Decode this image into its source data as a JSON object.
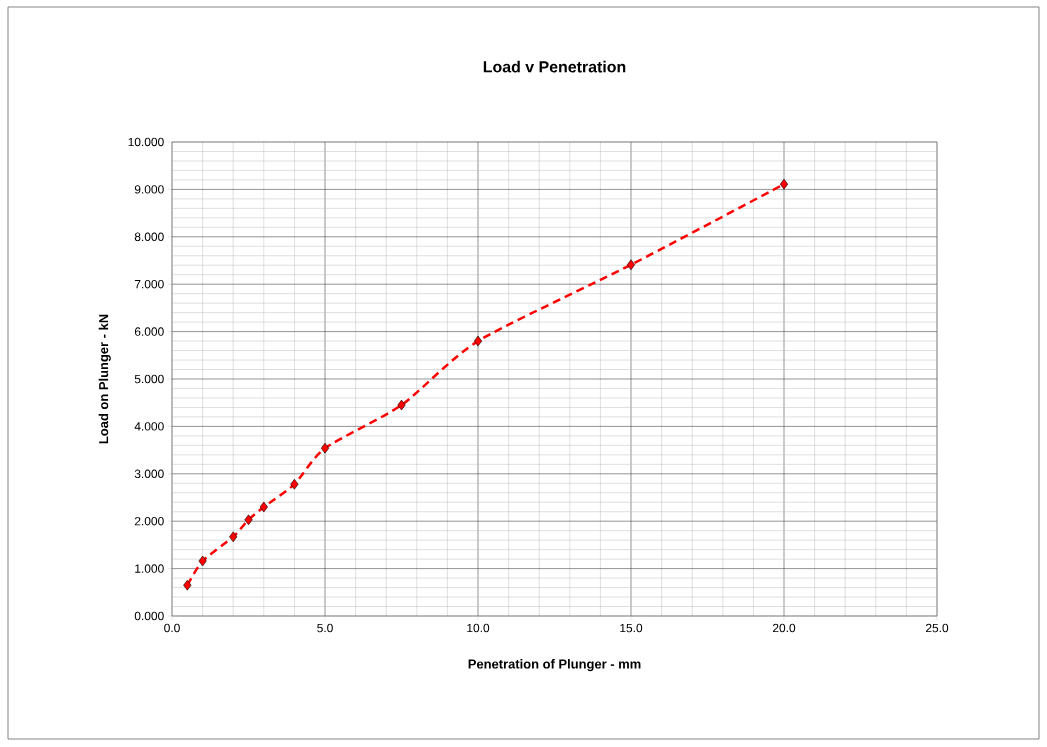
{
  "chart_data": {
    "type": "line",
    "title": "Load v Penetration",
    "xlabel": "Penetration of Plunger - mm",
    "ylabel": "Load on Plunger - kN",
    "x": [
      0.5,
      1,
      2,
      2.5,
      3,
      4,
      5,
      7.5,
      10,
      15,
      20
    ],
    "series": [
      {
        "color": "#ff0000",
        "values": [
          0.65,
          1.16,
          1.67,
          2.03,
          2.3,
          2.78,
          3.54,
          4.45,
          5.8,
          7.41,
          9.11
        ]
      }
    ],
    "xlim": [
      0,
      25
    ],
    "ylim": [
      0,
      10
    ],
    "xticks": [
      {
        "value": 0,
        "label": "0.0"
      },
      {
        "value": 5,
        "label": "5.0"
      },
      {
        "value": 10,
        "label": "10.0"
      },
      {
        "value": 15,
        "label": "15.0"
      },
      {
        "value": 20,
        "label": "20.0"
      },
      {
        "value": 25,
        "label": "25.0"
      }
    ],
    "yticks": [
      {
        "value": 0,
        "label": "0.000"
      },
      {
        "value": 1,
        "label": "1.000"
      },
      {
        "value": 2,
        "label": "2.000"
      },
      {
        "value": 3,
        "label": "3.000"
      },
      {
        "value": 4,
        "label": "4.000"
      },
      {
        "value": 5,
        "label": "5.000"
      },
      {
        "value": 6,
        "label": "6.000"
      },
      {
        "value": 7,
        "label": "7.000"
      },
      {
        "value": 8,
        "label": "8.000"
      },
      {
        "value": 9,
        "label": "9.000"
      },
      {
        "value": 10,
        "label": "10.000"
      }
    ],
    "grid": true,
    "marker": "diamond",
    "line_style": "dashed"
  }
}
